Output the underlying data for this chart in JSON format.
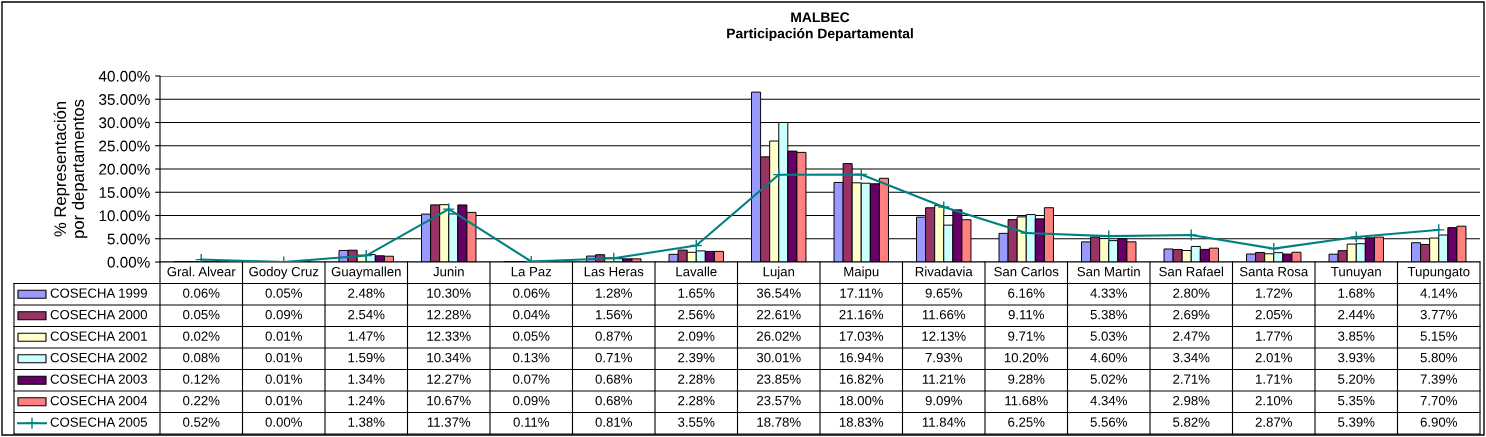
{
  "chart_data": {
    "type": "bar",
    "title": "MALBEC",
    "subtitle": "Participación Departamental",
    "ylabel": "% Representación\npor departamentos",
    "categories": [
      "Gral. Alvear",
      "Godoy Cruz",
      "Guaymallen",
      "Junin",
      "La Paz",
      "Las Heras",
      "Lavalle",
      "Lujan",
      "Maipu",
      "Rivadavia",
      "San Carlos",
      "San Martin",
      "San Rafael",
      "Santa Rosa",
      "Tunuyan",
      "Tupungato"
    ],
    "ylim": [
      0,
      40
    ],
    "yticks": [
      {
        "value": 0,
        "label": "0.00%"
      },
      {
        "value": 5,
        "label": "5.00%"
      },
      {
        "value": 10,
        "label": "10.00%"
      },
      {
        "value": 15,
        "label": "15.00%"
      },
      {
        "value": 20,
        "label": "20.00%"
      },
      {
        "value": 25,
        "label": "25.00%"
      },
      {
        "value": 30,
        "label": "30.00%"
      },
      {
        "value": 35,
        "label": "35.00%"
      },
      {
        "value": 40,
        "label": "40.00%"
      }
    ],
    "grid": "y",
    "legend": "bottom left",
    "series": [
      {
        "name": "COSECHA 1999",
        "color": "#9999ff",
        "values": [
          0.06,
          0.05,
          2.48,
          10.3,
          0.06,
          1.28,
          1.65,
          36.54,
          17.11,
          9.65,
          6.16,
          4.33,
          2.8,
          1.72,
          1.68,
          4.14
        ],
        "value_labels": [
          "0.06%",
          "0.05%",
          "2.48%",
          "10.30%",
          "0.06%",
          "1.28%",
          "1.65%",
          "36.54%",
          "17.11%",
          "9.65%",
          "6.16%",
          "4.33%",
          "2.80%",
          "1.72%",
          "1.68%",
          "4.14%"
        ]
      },
      {
        "name": "COSECHA 2000",
        "color": "#993366",
        "values": [
          0.05,
          0.09,
          2.54,
          12.28,
          0.04,
          1.56,
          2.56,
          22.61,
          21.16,
          11.66,
          9.11,
          5.38,
          2.69,
          2.05,
          2.44,
          3.77
        ],
        "value_labels": [
          "0.05%",
          "0.09%",
          "2.54%",
          "12.28%",
          "0.04%",
          "1.56%",
          "2.56%",
          "22.61%",
          "21.16%",
          "11.66%",
          "9.11%",
          "5.38%",
          "2.69%",
          "2.05%",
          "2.44%",
          "3.77%"
        ]
      },
      {
        "name": "COSECHA 2001",
        "color": "#ffffcc",
        "values": [
          0.02,
          0.01,
          1.47,
          12.33,
          0.05,
          0.87,
          2.09,
          26.02,
          17.03,
          12.13,
          9.71,
          5.03,
          2.47,
          1.77,
          3.85,
          5.15
        ],
        "value_labels": [
          "0.02%",
          "0.01%",
          "1.47%",
          "12.33%",
          "0.05%",
          "0.87%",
          "2.09%",
          "26.02%",
          "17.03%",
          "12.13%",
          "9.71%",
          "5.03%",
          "2.47%",
          "1.77%",
          "3.85%",
          "5.15%"
        ]
      },
      {
        "name": "COSECHA 2002",
        "color": "#ccffff",
        "values": [
          0.08,
          0.01,
          1.59,
          10.34,
          0.13,
          0.71,
          2.39,
          30.01,
          16.94,
          7.93,
          10.2,
          4.6,
          3.34,
          2.01,
          3.93,
          5.8
        ],
        "value_labels": [
          "0.08%",
          "0.01%",
          "1.59%",
          "10.34%",
          "0.13%",
          "0.71%",
          "2.39%",
          "30.01%",
          "16.94%",
          "7.93%",
          "10.20%",
          "4.60%",
          "3.34%",
          "2.01%",
          "3.93%",
          "5.80%"
        ]
      },
      {
        "name": "COSECHA 2003",
        "color": "#660066",
        "values": [
          0.12,
          0.01,
          1.34,
          12.27,
          0.07,
          0.68,
          2.28,
          23.85,
          16.82,
          11.21,
          9.28,
          5.02,
          2.71,
          1.71,
          5.2,
          7.39
        ],
        "value_labels": [
          "0.12%",
          "0.01%",
          "1.34%",
          "12.27%",
          "0.07%",
          "0.68%",
          "2.28%",
          "23.85%",
          "16.82%",
          "11.21%",
          "9.28%",
          "5.02%",
          "2.71%",
          "1.71%",
          "5.20%",
          "7.39%"
        ]
      },
      {
        "name": "COSECHA 2004",
        "color": "#ff8080",
        "values": [
          0.22,
          0.01,
          1.24,
          10.67,
          0.09,
          0.68,
          2.28,
          23.57,
          18.0,
          9.09,
          11.68,
          4.34,
          2.98,
          2.1,
          5.35,
          7.7
        ],
        "value_labels": [
          "0.22%",
          "0.01%",
          "1.24%",
          "10.67%",
          "0.09%",
          "0.68%",
          "2.28%",
          "23.57%",
          "18.00%",
          "9.09%",
          "11.68%",
          "4.34%",
          "2.98%",
          "2.10%",
          "5.35%",
          "7.70%"
        ]
      },
      {
        "name": "COSECHA 2005",
        "type": "line",
        "marker": "cross",
        "color": "#008080",
        "values": [
          0.52,
          0.0,
          1.38,
          11.37,
          0.11,
          0.81,
          3.55,
          18.78,
          18.83,
          11.84,
          6.25,
          5.56,
          5.82,
          2.87,
          5.39,
          6.9
        ],
        "value_labels": [
          "0.52%",
          "0.00%",
          "1.38%",
          "11.37%",
          "0.11%",
          "0.81%",
          "3.55%",
          "18.78%",
          "18.83%",
          "11.84%",
          "6.25%",
          "5.56%",
          "5.82%",
          "2.87%",
          "5.39%",
          "6.90%"
        ]
      }
    ]
  }
}
